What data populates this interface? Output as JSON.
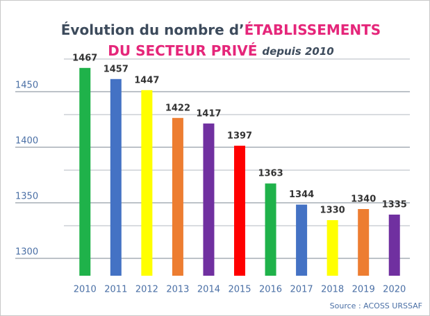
{
  "chart_data": {
    "type": "bar",
    "title": {
      "line1": "Évolution du nombre d’",
      "line1_highlight": "ÉTABLISSEMENTS",
      "line2_highlight": "DU SECTEUR PRIVÉ",
      "line2_italic": "depuis 2010"
    },
    "title_color": "#3d4b5c",
    "highlight_color": "#e5267a",
    "categories": [
      "2010",
      "2011",
      "2012",
      "2013",
      "2014",
      "2015",
      "2016",
      "2017",
      "2018",
      "2019",
      "2020"
    ],
    "values": [
      1467,
      1457,
      1447,
      1422,
      1417,
      1397,
      1363,
      1344,
      1330,
      1340,
      1335
    ],
    "colors": [
      "#1fb24a",
      "#4472c4",
      "#ffff00",
      "#ed7d31",
      "#7030a0",
      "#ff0000",
      "#1fb24a",
      "#4472c4",
      "#ffff00",
      "#ed7d31",
      "#7030a0"
    ],
    "ylim": [
      1280,
      1500
    ],
    "yticks": [
      1300,
      1350,
      1400,
      1450
    ],
    "minor_grid": [
      1325,
      1375,
      1425,
      1475
    ],
    "grid": true,
    "source": "Source : ACOSS URSSAF"
  }
}
